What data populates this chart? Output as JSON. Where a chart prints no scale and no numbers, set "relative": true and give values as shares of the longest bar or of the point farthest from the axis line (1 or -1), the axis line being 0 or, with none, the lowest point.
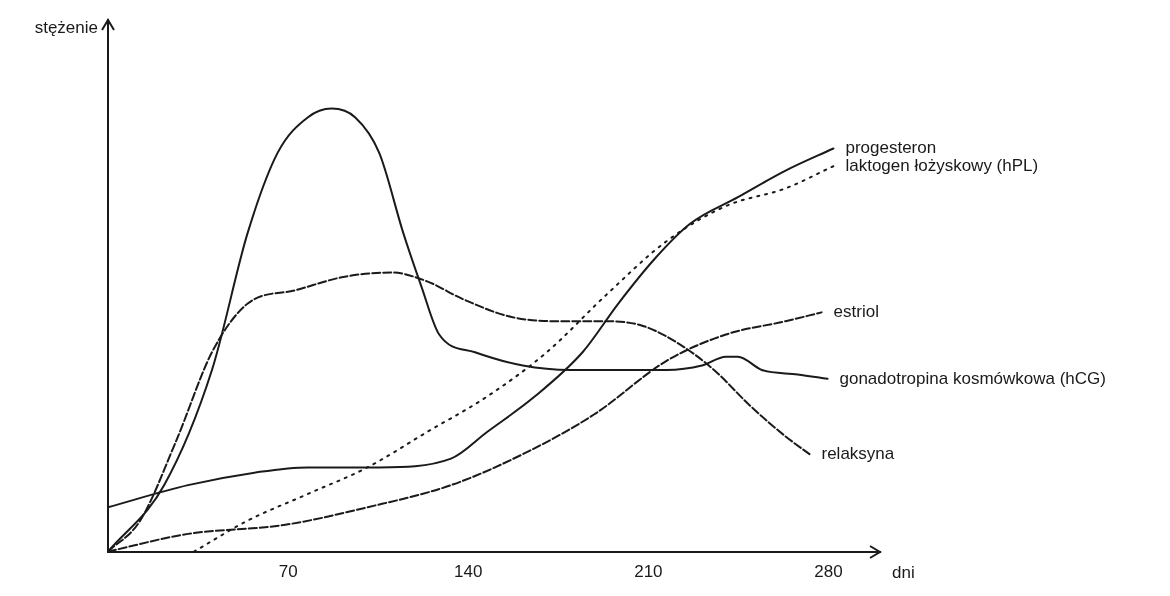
{
  "chart_data": {
    "type": "line",
    "relative": true,
    "xlabel": "dni",
    "ylabel": "stężenie",
    "xlim": [
      0,
      300
    ],
    "xticks": [
      70,
      140,
      210,
      280
    ],
    "grid": false,
    "legend": false,
    "marker": "none",
    "series": [
      {
        "name": "progesteron",
        "color": "#1a1a1a",
        "line_style": "solid",
        "x": [
          0,
          31.1,
          59.0,
          77.6,
          105.4,
          133.3,
          147.3,
          165.8,
          184.4,
          198.3,
          212.3,
          226.2,
          244.8,
          263.3,
          281.9
        ],
        "values": [
          0.1,
          0.15,
          0.18,
          0.19,
          0.19,
          0.21,
          0.27,
          0.35,
          0.45,
          0.56,
          0.66,
          0.74,
          0.8,
          0.86,
          0.91
        ]
      },
      {
        "name": "laktogen łożyskowy (hPL)",
        "color": "#1a1a1a",
        "line_style": "dotted",
        "x": [
          33.4,
          54.3,
          77.6,
          100.8,
          124.0,
          147.3,
          170.5,
          193.7,
          216.9,
          240.1,
          263.3,
          281.9
        ],
        "values": [
          0,
          0.07,
          0.13,
          0.19,
          0.27,
          0.35,
          0.45,
          0.58,
          0.7,
          0.78,
          0.82,
          0.87
        ]
      },
      {
        "name": "estriol",
        "color": "#1a1a1a",
        "line_style": "dashed",
        "x": [
          0,
          31.1,
          68.3,
          100.8,
          133.3,
          161.2,
          189.0,
          216.9,
          240.1,
          263.3,
          277.3
        ],
        "values": [
          0,
          0.04,
          0.06,
          0.1,
          0.15,
          0.22,
          0.31,
          0.43,
          0.49,
          0.52,
          0.54
        ]
      },
      {
        "name": "gonadotropina kosmówkowa (hCG)",
        "color": "#1a1a1a",
        "line_style": "solid",
        "x": [
          0,
          21.8,
          40.4,
          54.3,
          65.9,
          77.6,
          86.9,
          96.1,
          105.4,
          114.7,
          121.7,
          128.7,
          142.6,
          161.2,
          179.7,
          198.3,
          216.9,
          230.8,
          240.1,
          244.8,
          254.1,
          268.0,
          279.6
        ],
        "values": [
          0,
          0.15,
          0.41,
          0.72,
          0.9,
          0.98,
          1.0,
          0.98,
          0.9,
          0.72,
          0.6,
          0.49,
          0.45,
          0.42,
          0.41,
          0.41,
          0.41,
          0.42,
          0.44,
          0.44,
          0.41,
          0.4,
          0.39
        ]
      },
      {
        "name": "relaksyna",
        "color": "#1a1a1a",
        "line_style": "dashed",
        "x": [
          0,
          12.5,
          26.5,
          40.4,
          54.3,
          72.9,
          91.5,
          110.1,
          124.0,
          137.9,
          156.5,
          175.1,
          193.7,
          207.6,
          221.6,
          235.5,
          249.4,
          263.3,
          272.6
        ],
        "values": [
          0,
          0.07,
          0.25,
          0.45,
          0.56,
          0.59,
          0.62,
          0.63,
          0.61,
          0.57,
          0.53,
          0.52,
          0.52,
          0.51,
          0.47,
          0.41,
          0.33,
          0.26,
          0.22
        ]
      }
    ]
  }
}
